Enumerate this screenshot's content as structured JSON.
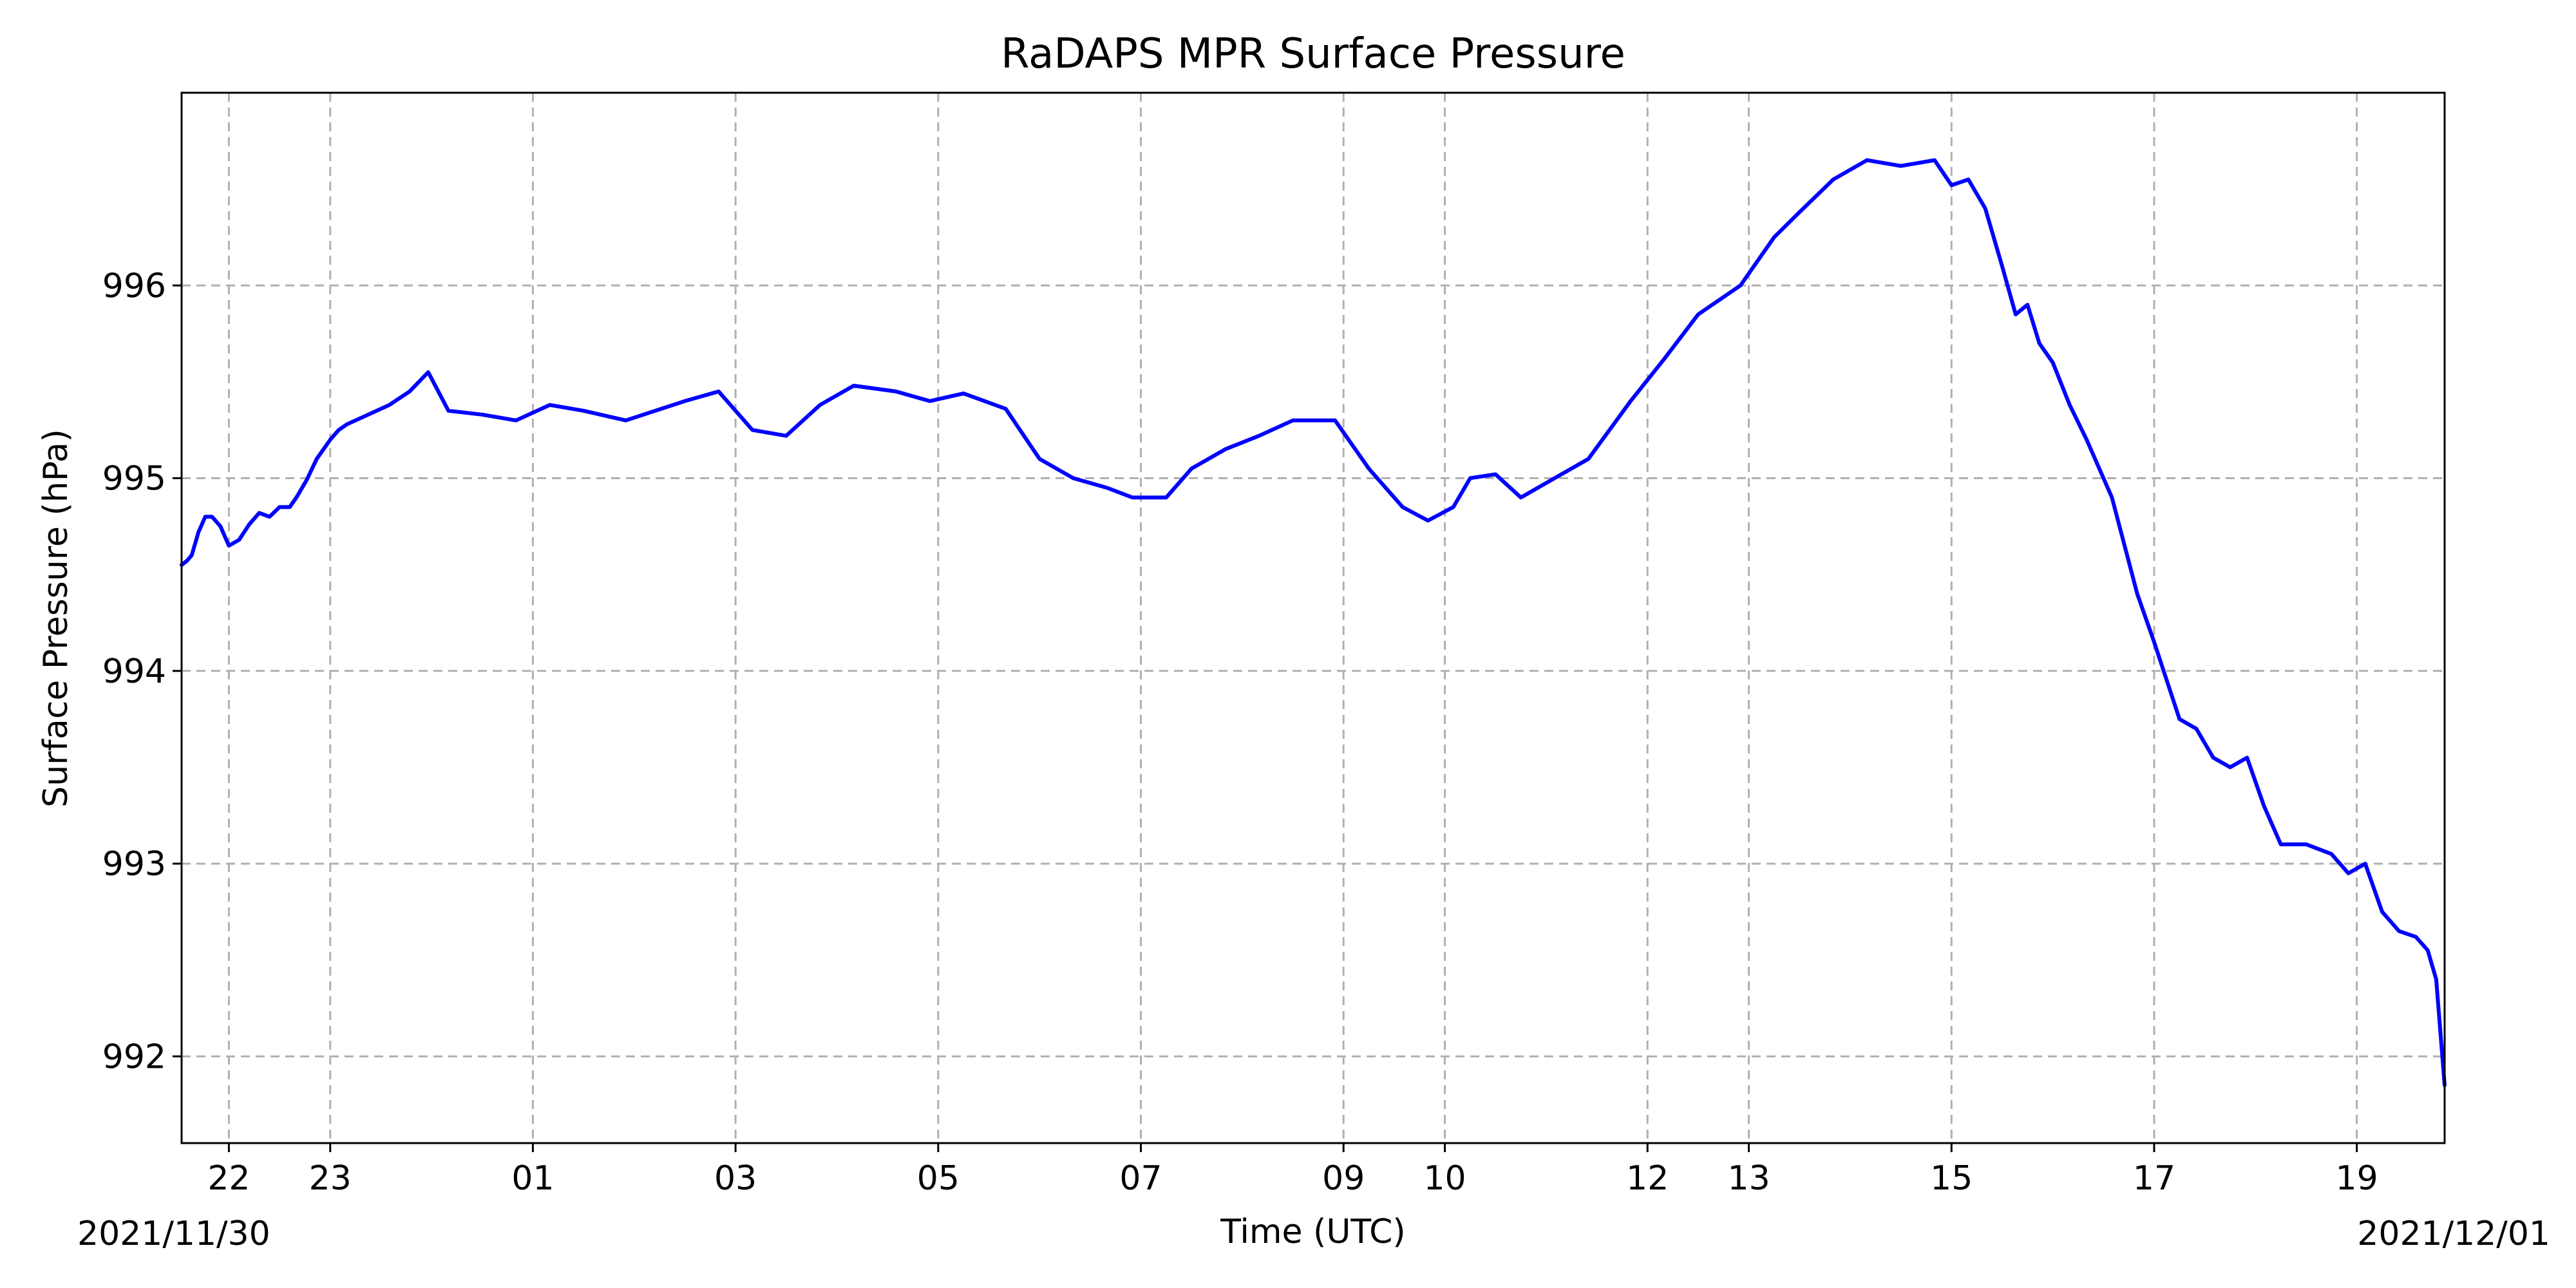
{
  "chart_data": {
    "type": "line",
    "title": "RaDAPS MPR Surface Pressure",
    "xlabel": "Time (UTC)",
    "ylabel": "Surface Pressure (hPa)",
    "date_start_label": "2021/11/30",
    "date_end_label": "2021/12/01",
    "grid": true,
    "ylim": [
      991.55,
      997.0
    ],
    "xlim": [
      "2021-11-30T21:32",
      "2021-12-01T19:52"
    ],
    "x_ticks": [
      {
        "label": "22",
        "t": "2021-11-30T22:00"
      },
      {
        "label": "23",
        "t": "2021-11-30T23:00"
      },
      {
        "label": "01",
        "t": "2021-12-01T01:00"
      },
      {
        "label": "03",
        "t": "2021-12-01T03:00"
      },
      {
        "label": "05",
        "t": "2021-12-01T05:00"
      },
      {
        "label": "07",
        "t": "2021-12-01T07:00"
      },
      {
        "label": "09",
        "t": "2021-12-01T09:00"
      },
      {
        "label": "10",
        "t": "2021-12-01T10:00"
      },
      {
        "label": "12",
        "t": "2021-12-01T12:00"
      },
      {
        "label": "13",
        "t": "2021-12-01T13:00"
      },
      {
        "label": "15",
        "t": "2021-12-01T15:00"
      },
      {
        "label": "17",
        "t": "2021-12-01T17:00"
      },
      {
        "label": "19",
        "t": "2021-12-01T19:00"
      }
    ],
    "y_ticks": [
      {
        "label": "992",
        "v": 992
      },
      {
        "label": "993",
        "v": 993
      },
      {
        "label": "994",
        "v": 994
      },
      {
        "label": "995",
        "v": 995
      },
      {
        "label": "996",
        "v": 996
      }
    ],
    "colors": {
      "line": "#0000ff",
      "grid": "#b0b0b0",
      "axis": "#000000"
    },
    "series": [
      {
        "times": [
          "2021-11-30T21:32",
          "2021-11-30T21:35",
          "2021-11-30T21:38",
          "2021-11-30T21:42",
          "2021-11-30T21:46",
          "2021-11-30T21:50",
          "2021-11-30T21:55",
          "2021-11-30T22:00",
          "2021-11-30T22:06",
          "2021-11-30T22:12",
          "2021-11-30T22:18",
          "2021-11-30T22:24",
          "2021-11-30T22:30",
          "2021-11-30T22:34",
          "2021-11-30T22:36",
          "2021-11-30T22:40",
          "2021-11-30T22:46",
          "2021-11-30T22:52",
          "2021-11-30T23:00",
          "2021-11-30T23:05",
          "2021-11-30T23:10",
          "2021-11-30T23:20",
          "2021-11-30T23:35",
          "2021-11-30T23:47",
          "2021-11-30T23:58",
          "2021-12-01T00:10",
          "2021-12-01T00:30",
          "2021-12-01T00:50",
          "2021-12-01T01:10",
          "2021-12-01T01:30",
          "2021-12-01T01:55",
          "2021-12-01T02:30",
          "2021-12-01T02:50",
          "2021-12-01T03:10",
          "2021-12-01T03:30",
          "2021-12-01T03:50",
          "2021-12-01T04:10",
          "2021-12-01T04:35",
          "2021-12-01T04:55",
          "2021-12-01T05:15",
          "2021-12-01T05:40",
          "2021-12-01T06:00",
          "2021-12-01T06:20",
          "2021-12-01T06:40",
          "2021-12-01T06:55",
          "2021-12-01T07:15",
          "2021-12-01T07:30",
          "2021-12-01T07:50",
          "2021-12-01T08:10",
          "2021-12-01T08:30",
          "2021-12-01T08:55",
          "2021-12-01T09:15",
          "2021-12-01T09:35",
          "2021-12-01T09:50",
          "2021-12-01T10:05",
          "2021-12-01T10:15",
          "2021-12-01T10:30",
          "2021-12-01T10:45",
          "2021-12-01T11:05",
          "2021-12-01T11:25",
          "2021-12-01T11:50",
          "2021-12-01T12:10",
          "2021-12-01T12:30",
          "2021-12-01T12:55",
          "2021-12-01T13:15",
          "2021-12-01T13:30",
          "2021-12-01T13:50",
          "2021-12-01T14:10",
          "2021-12-01T14:30",
          "2021-12-01T14:50",
          "2021-12-01T15:00",
          "2021-12-01T15:10",
          "2021-12-01T15:20",
          "2021-12-01T15:30",
          "2021-12-01T15:38",
          "2021-12-01T15:45",
          "2021-12-01T15:52",
          "2021-12-01T16:00",
          "2021-12-01T16:10",
          "2021-12-01T16:20",
          "2021-12-01T16:35",
          "2021-12-01T16:50",
          "2021-12-01T17:00",
          "2021-12-01T17:15",
          "2021-12-01T17:25",
          "2021-12-01T17:35",
          "2021-12-01T17:45",
          "2021-12-01T17:55",
          "2021-12-01T18:05",
          "2021-12-01T18:15",
          "2021-12-01T18:30",
          "2021-12-01T18:45",
          "2021-12-01T18:55",
          "2021-12-01T19:05",
          "2021-12-01T19:15",
          "2021-12-01T19:25",
          "2021-12-01T19:35",
          "2021-12-01T19:42",
          "2021-12-01T19:47",
          "2021-12-01T19:52"
        ],
        "values": [
          994.55,
          994.57,
          994.6,
          994.72,
          994.8,
          994.8,
          994.75,
          994.65,
          994.68,
          994.76,
          994.82,
          994.8,
          994.85,
          994.85,
          994.85,
          994.9,
          994.99,
          995.1,
          995.2,
          995.25,
          995.28,
          995.32,
          995.38,
          995.45,
          995.55,
          995.35,
          995.33,
          995.3,
          995.38,
          995.35,
          995.3,
          995.4,
          995.45,
          995.25,
          995.22,
          995.38,
          995.48,
          995.45,
          995.4,
          995.44,
          995.36,
          995.1,
          995.0,
          994.95,
          994.9,
          994.9,
          995.05,
          995.15,
          995.22,
          995.3,
          995.3,
          995.05,
          994.85,
          994.78,
          994.85,
          995.0,
          995.02,
          994.9,
          995.0,
          995.1,
          995.4,
          995.62,
          995.85,
          996.0,
          996.25,
          996.38,
          996.55,
          996.65,
          996.62,
          996.65,
          996.52,
          996.55,
          996.4,
          996.1,
          995.85,
          995.9,
          995.7,
          995.6,
          995.38,
          995.2,
          994.9,
          994.4,
          994.15,
          993.75,
          993.7,
          993.55,
          993.5,
          993.55,
          993.3,
          993.1,
          993.1,
          993.05,
          992.95,
          993.0,
          992.75,
          992.65,
          992.62,
          992.55,
          992.4,
          991.85
        ]
      }
    ]
  }
}
